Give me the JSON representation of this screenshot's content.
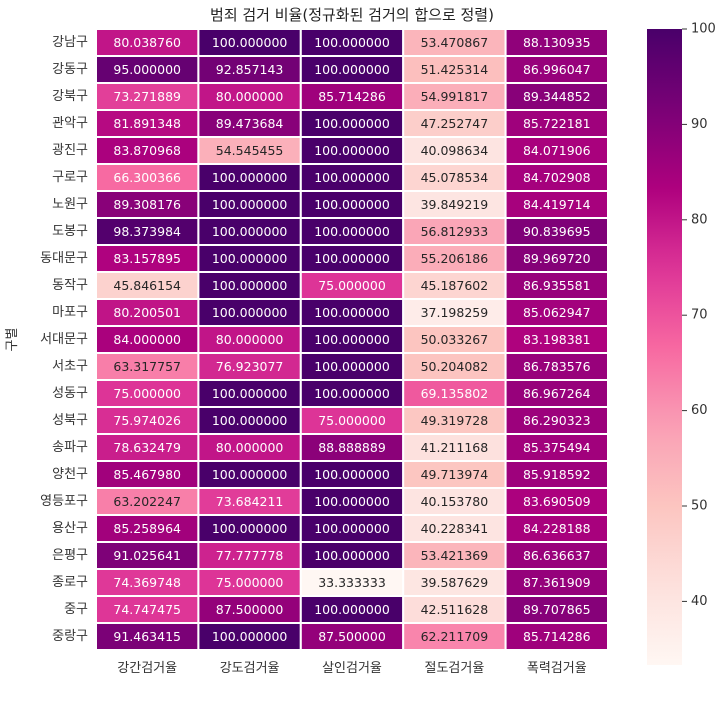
{
  "chart_data": {
    "type": "heatmap",
    "title": "범죄 검거 비율(정규화된 검거의 합으로 정렬)",
    "ylabel": "구별",
    "xlabel": "",
    "columns": [
      "강간검거율",
      "강도검거율",
      "살인검거율",
      "절도검거율",
      "폭력검거율"
    ],
    "rows": [
      "강남구",
      "강동구",
      "강북구",
      "관악구",
      "광진구",
      "구로구",
      "노원구",
      "도봉구",
      "동대문구",
      "동작구",
      "마포구",
      "서대문구",
      "서초구",
      "성동구",
      "성북구",
      "송파구",
      "양천구",
      "영등포구",
      "용산구",
      "은평구",
      "종로구",
      "중구",
      "중랑구"
    ],
    "values": [
      [
        80.03876,
        100.0,
        100.0,
        53.470867,
        88.130935
      ],
      [
        95.0,
        92.857143,
        100.0,
        51.425314,
        86.996047
      ],
      [
        73.271889,
        80.0,
        85.714286,
        54.991817,
        89.344852
      ],
      [
        81.891348,
        89.473684,
        100.0,
        47.252747,
        85.722181
      ],
      [
        83.870968,
        54.545455,
        100.0,
        40.098634,
        84.071906
      ],
      [
        66.300366,
        100.0,
        100.0,
        45.078534,
        84.702908
      ],
      [
        89.308176,
        100.0,
        100.0,
        39.849219,
        84.419714
      ],
      [
        98.373984,
        100.0,
        100.0,
        56.812933,
        90.839695
      ],
      [
        83.157895,
        100.0,
        100.0,
        55.206186,
        89.96972
      ],
      [
        45.846154,
        100.0,
        75.0,
        45.187602,
        86.935581
      ],
      [
        80.200501,
        100.0,
        100.0,
        37.198259,
        85.062947
      ],
      [
        84.0,
        80.0,
        100.0,
        50.033267,
        83.198381
      ],
      [
        63.317757,
        76.923077,
        100.0,
        50.204082,
        86.783576
      ],
      [
        75.0,
        100.0,
        100.0,
        69.135802,
        86.967264
      ],
      [
        75.974026,
        100.0,
        75.0,
        49.319728,
        86.290323
      ],
      [
        78.632479,
        80.0,
        88.888889,
        41.211168,
        85.375494
      ],
      [
        85.46798,
        100.0,
        100.0,
        49.713974,
        85.918592
      ],
      [
        63.202247,
        73.684211,
        100.0,
        40.15378,
        83.690509
      ],
      [
        85.258964,
        100.0,
        100.0,
        40.228341,
        84.228188
      ],
      [
        91.025641,
        77.777778,
        100.0,
        53.421369,
        86.636637
      ],
      [
        74.369748,
        75.0,
        33.333333,
        39.587629,
        87.361909
      ],
      [
        74.747475,
        87.5,
        100.0,
        42.511628,
        89.707865
      ],
      [
        91.463415,
        100.0,
        87.5,
        62.211709,
        85.714286
      ]
    ],
    "value_format": "%.6f",
    "colormap": "RdPu",
    "colorbar": {
      "vmin": 33.333333,
      "vmax": 100,
      "ticks": [
        40,
        50,
        60,
        70,
        80,
        90,
        100
      ]
    },
    "colors": {
      "low": "#fff7f3",
      "high": "#49006a",
      "cell_border": "#ffffff"
    },
    "legend_position": "right"
  }
}
